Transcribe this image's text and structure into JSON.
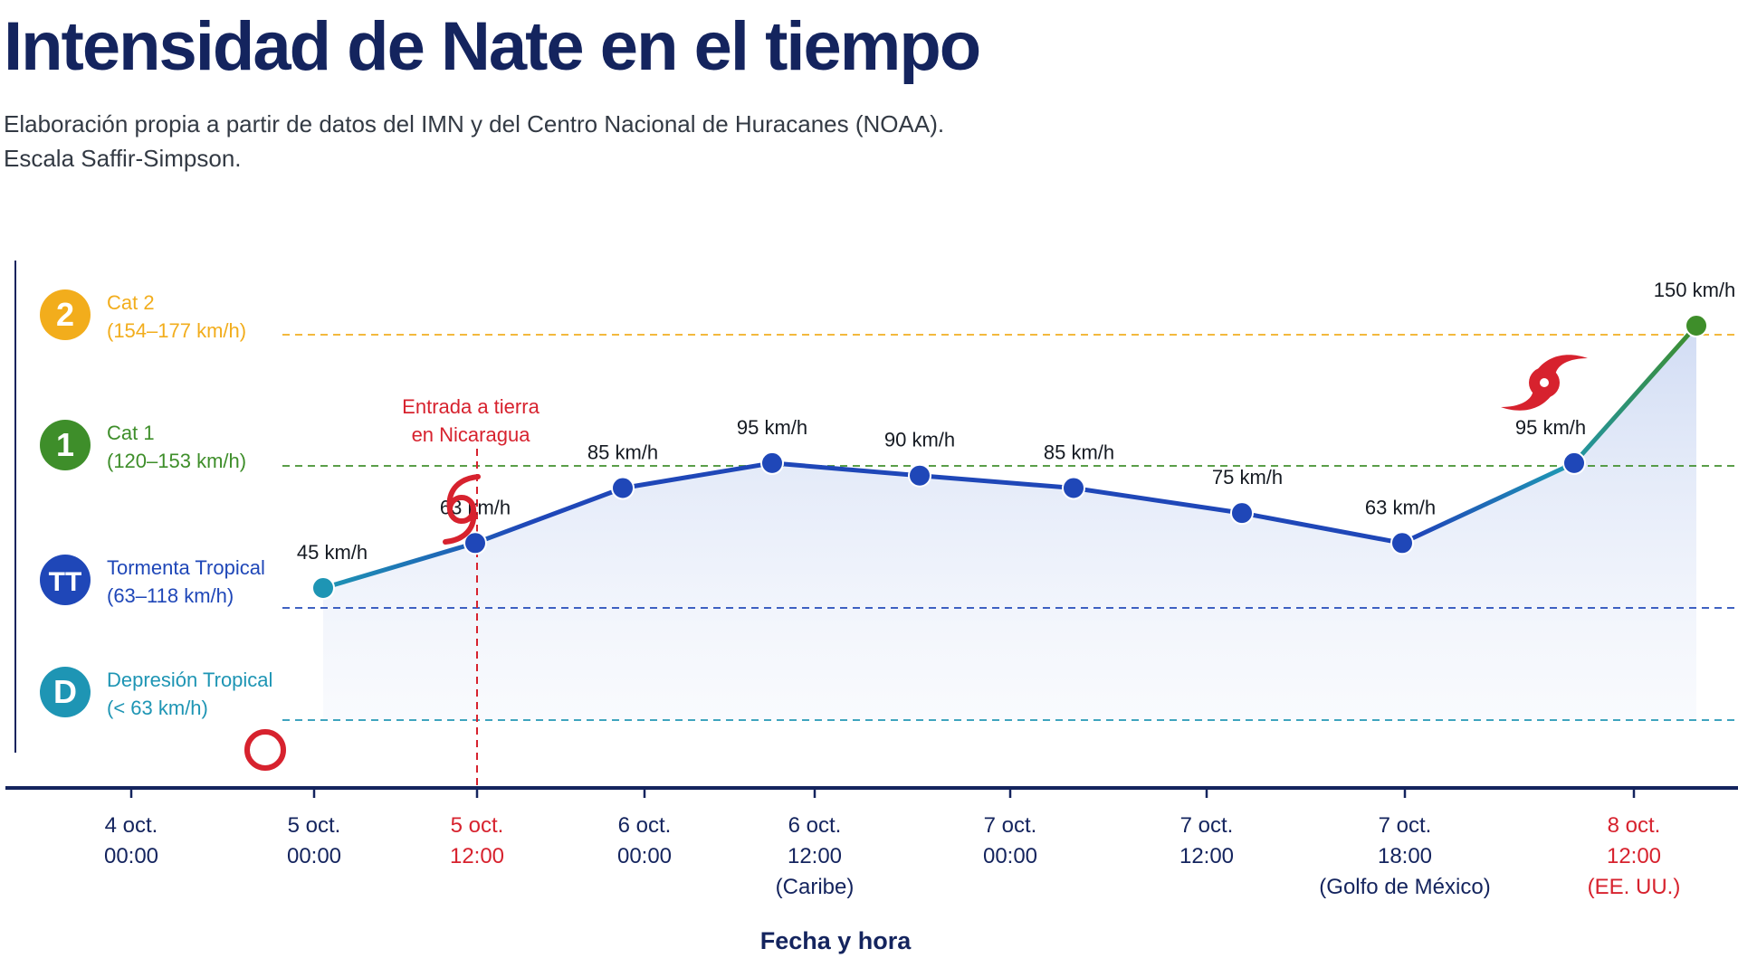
{
  "title": "Intensidad de Nate en el tiempo",
  "subtitle_lines": [
    "Elaboración propia a partir de datos del IMN y del Centro Nacional de Huracanes (NOAA).",
    "Escala Saffir-Simpson."
  ],
  "colors": {
    "title": "#14245e",
    "axis": "#14245e",
    "cat2": "#f2ad1c",
    "cat1": "#3e8e2a",
    "tt": "#1f47b8",
    "d": "#1e95b4",
    "line_main": "#1f47b8",
    "highlight": "#d7222e"
  },
  "chart_data": {
    "type": "line",
    "xlabel": "Fecha y hora",
    "ylabel": "",
    "y_unit": "km/h",
    "ylim": [
      30,
      160
    ],
    "grid": false,
    "x_ticks": [
      {
        "key": "t0",
        "lines": [
          "4 oct.",
          "00:00"
        ],
        "highlight": false
      },
      {
        "key": "t1",
        "lines": [
          "5 oct.",
          "00:00"
        ],
        "highlight": false
      },
      {
        "key": "t2",
        "lines": [
          "5 oct.",
          "12:00"
        ],
        "highlight": true
      },
      {
        "key": "t3",
        "lines": [
          "6 oct.",
          "00:00"
        ],
        "highlight": false
      },
      {
        "key": "t4",
        "lines": [
          "6 oct.",
          "12:00",
          "(Caribe)"
        ],
        "highlight": false
      },
      {
        "key": "t5",
        "lines": [
          "7 oct.",
          "00:00"
        ],
        "highlight": false
      },
      {
        "key": "t6",
        "lines": [
          "7 oct.",
          "12:00"
        ],
        "highlight": false
      },
      {
        "key": "t7",
        "lines": [
          "7 oct.",
          "18:00",
          "(Golfo de México)"
        ],
        "highlight": false
      },
      {
        "key": "t8",
        "lines": [
          "8 oct.",
          "12:00",
          "(EE. UU.)"
        ],
        "highlight": true
      }
    ],
    "series": [
      {
        "points": [
          {
            "y": 45,
            "label": "45 km/h"
          },
          {
            "y": 63,
            "label": "63 km/h"
          },
          {
            "y": 85,
            "label": "85 km/h"
          },
          {
            "y": 95,
            "label": "95 km/h"
          },
          {
            "y": 90,
            "label": "90 km/h"
          },
          {
            "y": 85,
            "label": "85 km/h"
          },
          {
            "y": 75,
            "label": "75 km/h"
          },
          {
            "y": 63,
            "label": "63 km/h"
          },
          {
            "y": 95,
            "label": "95 km/h"
          },
          {
            "y": 150,
            "label": "150 km/h"
          }
        ]
      }
    ],
    "thresholds": [
      {
        "key": "cat2",
        "badge": "2",
        "name": "Cat 2",
        "range": "(154–177 km/h)",
        "value": 154
      },
      {
        "key": "cat1",
        "badge": "1",
        "name": "Cat 1",
        "range": "(120–153 km/h)",
        "value": 120
      },
      {
        "key": "tt",
        "badge": "TT",
        "name": "Tormenta Tropical",
        "range": "(63–118 km/h)",
        "value": 63
      },
      {
        "key": "d",
        "badge": "D",
        "name": "Depresión Tropical",
        "range": "(< 63 km/h)",
        "value": 30
      }
    ],
    "annotations": [
      {
        "key": "landfall",
        "lines": [
          "Entrada a tierra",
          "en Nicaragua"
        ],
        "x_tick": "t2"
      }
    ]
  }
}
